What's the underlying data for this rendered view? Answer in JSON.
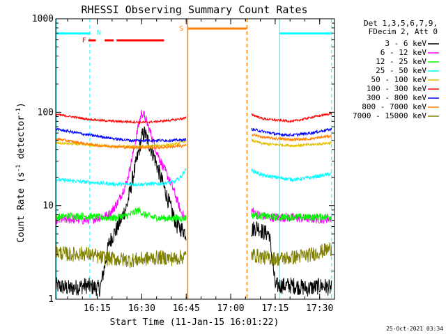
{
  "chart_data": {
    "type": "line",
    "title": "RHESSI Observing Summary Count Rates",
    "xlabel": "Start Time (11-Jan-15 16:01:22)",
    "ylabel_main": "Count Rate (s",
    "ylabel_sup1": "-1",
    "ylabel_mid": " detector",
    "ylabel_sup2": "-1",
    "ylabel_end": ")",
    "y_scale": "log",
    "ylim": [
      1,
      1000
    ],
    "xlim_min": [
      0,
      94
    ],
    "y_ticks": [
      {
        "value": 1,
        "label": "1"
      },
      {
        "value": 10,
        "label": "10"
      },
      {
        "value": 100,
        "label": "100"
      },
      {
        "value": 1000,
        "label": "1000"
      }
    ],
    "x_ticks": [
      {
        "min": 14,
        "label": "16:15"
      },
      {
        "min": 29,
        "label": "16:30"
      },
      {
        "min": 44,
        "label": "16:45"
      },
      {
        "min": 59,
        "label": "17:00"
      },
      {
        "min": 74,
        "label": "17:15"
      },
      {
        "min": 89,
        "label": "17:30"
      }
    ],
    "footer_date": "25-Oct-2021 03:34",
    "legend_header": [
      "Det 1,3,5,6,7,9,",
      "FDecim 2, Att 0"
    ],
    "legend_position": "right",
    "series": [
      {
        "name": "3 - 6 keV",
        "color": "#000000",
        "pre": [
          [
            0,
            1.4
          ],
          [
            5,
            1.3
          ],
          [
            10,
            1.4
          ],
          [
            15,
            1.3
          ],
          [
            18,
            4
          ],
          [
            21,
            6
          ],
          [
            24,
            10
          ],
          [
            26,
            20
          ],
          [
            28,
            38
          ],
          [
            29,
            55
          ],
          [
            30,
            60
          ],
          [
            31,
            50
          ],
          [
            33,
            35
          ],
          [
            35,
            22
          ],
          [
            37,
            14
          ],
          [
            39,
            9
          ],
          [
            41,
            6
          ],
          [
            43,
            5.5
          ],
          [
            44,
            5
          ]
        ],
        "post": [
          [
            66,
            5.5
          ],
          [
            68,
            6
          ],
          [
            70,
            5.2
          ],
          [
            72,
            5
          ],
          [
            74,
            1.4
          ],
          [
            80,
            1.4
          ],
          [
            85,
            1.3
          ],
          [
            90,
            1.4
          ],
          [
            93,
            1.3
          ]
        ]
      },
      {
        "name": "6 - 12 keV",
        "color": "#ff00ff",
        "pre": [
          [
            0,
            7
          ],
          [
            5,
            7.2
          ],
          [
            10,
            7
          ],
          [
            15,
            7.5
          ],
          [
            18,
            8
          ],
          [
            21,
            11
          ],
          [
            24,
            18
          ],
          [
            26,
            35
          ],
          [
            28,
            75
          ],
          [
            29,
            100
          ],
          [
            30,
            90
          ],
          [
            32,
            60
          ],
          [
            34,
            38
          ],
          [
            36,
            27
          ],
          [
            38,
            20
          ],
          [
            40,
            14
          ],
          [
            42,
            9
          ],
          [
            44,
            7
          ]
        ],
        "post": [
          [
            66,
            9
          ],
          [
            68,
            8
          ],
          [
            72,
            7.5
          ],
          [
            78,
            7.5
          ],
          [
            84,
            7.3
          ],
          [
            90,
            7.2
          ],
          [
            93,
            7.4
          ]
        ]
      },
      {
        "name": "12 - 25 keV",
        "color": "#00ff00",
        "pre": [
          [
            0,
            7.5
          ],
          [
            5,
            7.8
          ],
          [
            10,
            7.7
          ],
          [
            15,
            7.5
          ],
          [
            20,
            7.4
          ],
          [
            25,
            8
          ],
          [
            28,
            9
          ],
          [
            30,
            8
          ],
          [
            33,
            7.5
          ],
          [
            38,
            7.3
          ],
          [
            44,
            7.4
          ]
        ],
        "post": [
          [
            66,
            8
          ],
          [
            70,
            7.7
          ],
          [
            75,
            7.5
          ],
          [
            80,
            7.6
          ],
          [
            86,
            7.5
          ],
          [
            93,
            7.7
          ]
        ]
      },
      {
        "name": "25 - 50 keV",
        "color": "#00ffff",
        "pre": [
          [
            0,
            19
          ],
          [
            5,
            18.5
          ],
          [
            10,
            18
          ],
          [
            15,
            17.5
          ],
          [
            20,
            17
          ],
          [
            25,
            17
          ],
          [
            30,
            17
          ],
          [
            35,
            17.2
          ],
          [
            40,
            18
          ],
          [
            42,
            20
          ],
          [
            44,
            25
          ]
        ],
        "post": [
          [
            66,
            24
          ],
          [
            70,
            21
          ],
          [
            75,
            20
          ],
          [
            80,
            19
          ],
          [
            86,
            20
          ],
          [
            93,
            22
          ]
        ]
      },
      {
        "name": "50 - 100 keV",
        "color": "#e0c000",
        "pre": [
          [
            0,
            47
          ],
          [
            5,
            46
          ],
          [
            10,
            45
          ],
          [
            15,
            44
          ],
          [
            20,
            43
          ],
          [
            25,
            43
          ],
          [
            30,
            43
          ],
          [
            35,
            44
          ],
          [
            40,
            45
          ],
          [
            44,
            50
          ]
        ],
        "post": [
          [
            66,
            50
          ],
          [
            70,
            46
          ],
          [
            75,
            45
          ],
          [
            80,
            44
          ],
          [
            86,
            45
          ],
          [
            93,
            47
          ]
        ]
      },
      {
        "name": "100 - 300 keV",
        "color": "#ff0000",
        "pre": [
          [
            0,
            95
          ],
          [
            5,
            90
          ],
          [
            10,
            85
          ],
          [
            15,
            82
          ],
          [
            20,
            80
          ],
          [
            25,
            79
          ],
          [
            30,
            78
          ],
          [
            35,
            80
          ],
          [
            40,
            83
          ],
          [
            44,
            87
          ]
        ],
        "post": [
          [
            66,
            95
          ],
          [
            70,
            85
          ],
          [
            75,
            82
          ],
          [
            80,
            80
          ],
          [
            86,
            88
          ],
          [
            93,
            97
          ]
        ]
      },
      {
        "name": "300 - 800 keV",
        "color": "#0000ff",
        "pre": [
          [
            0,
            66
          ],
          [
            5,
            62
          ],
          [
            10,
            58
          ],
          [
            15,
            55
          ],
          [
            20,
            52
          ],
          [
            25,
            50
          ],
          [
            30,
            50
          ],
          [
            35,
            50
          ],
          [
            40,
            50
          ],
          [
            44,
            51
          ]
        ],
        "post": [
          [
            66,
            66
          ],
          [
            70,
            62
          ],
          [
            75,
            58
          ],
          [
            80,
            57
          ],
          [
            86,
            60
          ],
          [
            93,
            66
          ]
        ]
      },
      {
        "name": "800 - 7000 keV",
        "color": "#ff8000",
        "pre": [
          [
            0,
            52
          ],
          [
            5,
            49
          ],
          [
            10,
            46
          ],
          [
            15,
            44
          ],
          [
            20,
            43
          ],
          [
            25,
            42
          ],
          [
            30,
            42
          ],
          [
            35,
            42
          ],
          [
            40,
            43
          ],
          [
            44,
            44
          ]
        ],
        "post": [
          [
            66,
            58
          ],
          [
            70,
            54
          ],
          [
            75,
            52
          ],
          [
            80,
            51
          ],
          [
            86,
            52
          ],
          [
            93,
            56
          ]
        ]
      },
      {
        "name": "7000 - 15000 keV",
        "color": "#808000",
        "pre": [
          [
            0,
            3.2
          ],
          [
            5,
            3.0
          ],
          [
            10,
            3.1
          ],
          [
            15,
            2.8
          ],
          [
            20,
            2.7
          ],
          [
            25,
            2.6
          ],
          [
            30,
            2.7
          ],
          [
            35,
            2.8
          ],
          [
            40,
            2.7
          ],
          [
            44,
            2.9
          ]
        ],
        "post": [
          [
            66,
            3.0
          ],
          [
            70,
            2.8
          ],
          [
            75,
            2.7
          ],
          [
            80,
            2.8
          ],
          [
            86,
            3.0
          ],
          [
            93,
            3.5
          ]
        ]
      }
    ],
    "annotations": {
      "N_label": "N",
      "F_label": "F",
      "S_label": "S",
      "night_start": 11.5,
      "night_end": 75.5,
      "saa_start": 44.5,
      "saa_end": 64.5,
      "flare_segments": [
        [
          11,
          13.5
        ],
        [
          16.5,
          19.5
        ],
        [
          20.5,
          36.5
        ]
      ]
    }
  }
}
